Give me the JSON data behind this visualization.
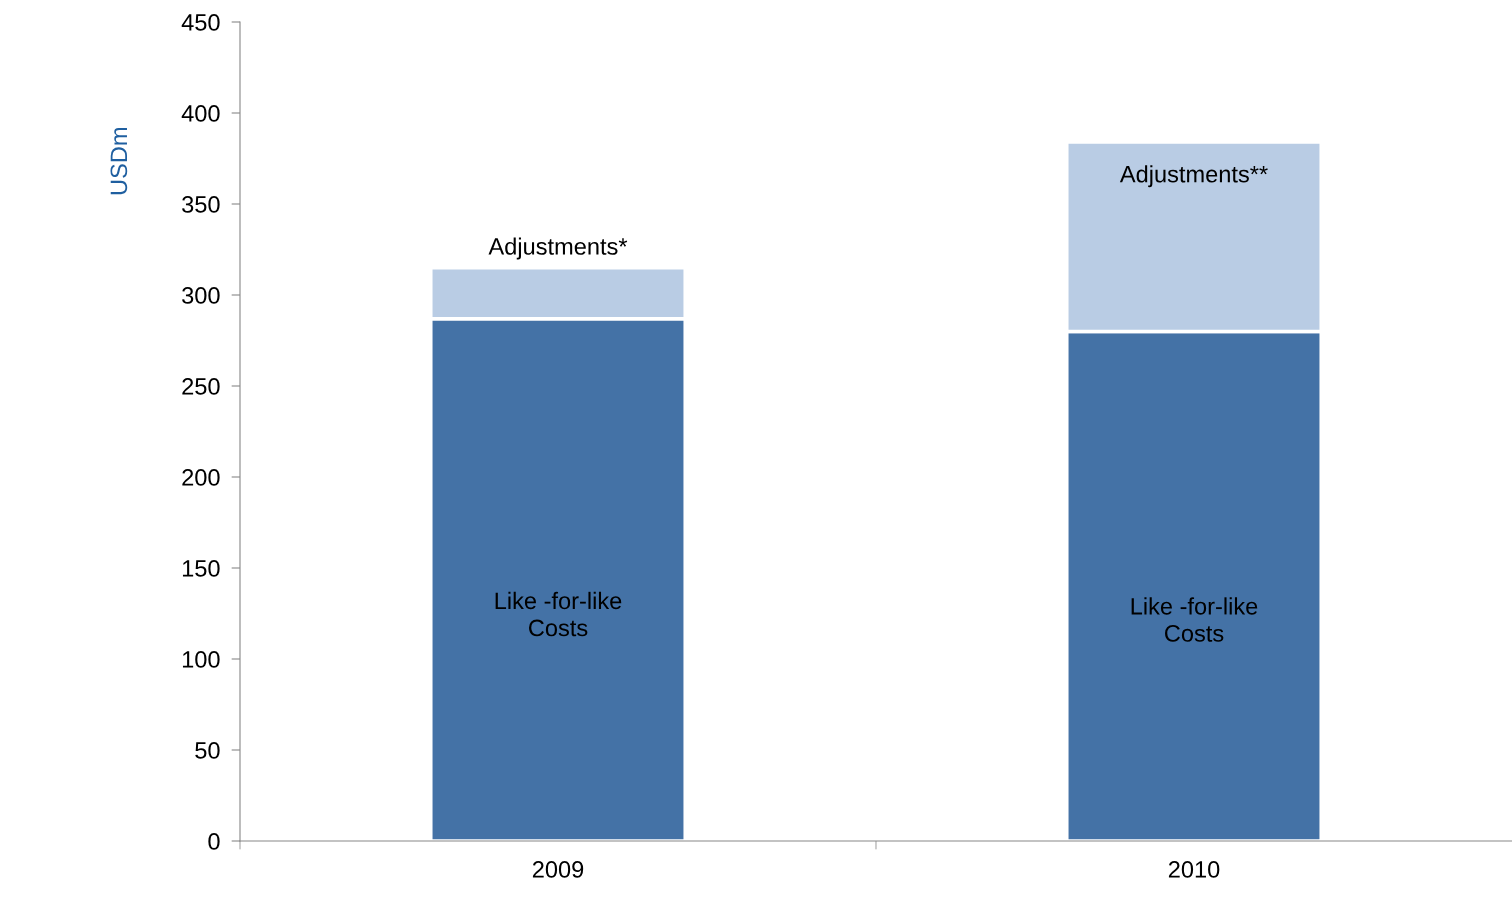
{
  "chart_data": {
    "type": "bar",
    "ylabel": "USDm",
    "stacked": true,
    "categories": [
      "2009",
      "2010"
    ],
    "series": [
      {
        "color": "#4472a6",
        "values": [
          287,
          280
        ]
      },
      {
        "color": "#b9cce4",
        "values": [
          28,
          104
        ]
      }
    ],
    "ylim": [
      0,
      450
    ],
    "yticks": [
      0,
      50,
      100,
      150,
      200,
      250,
      300,
      350,
      400,
      450
    ],
    "grid": false,
    "annotations": [
      "Like -for-like\nCosts",
      "Like -for-like\nCosts",
      "Adjustments*",
      "Adjustments**"
    ]
  }
}
